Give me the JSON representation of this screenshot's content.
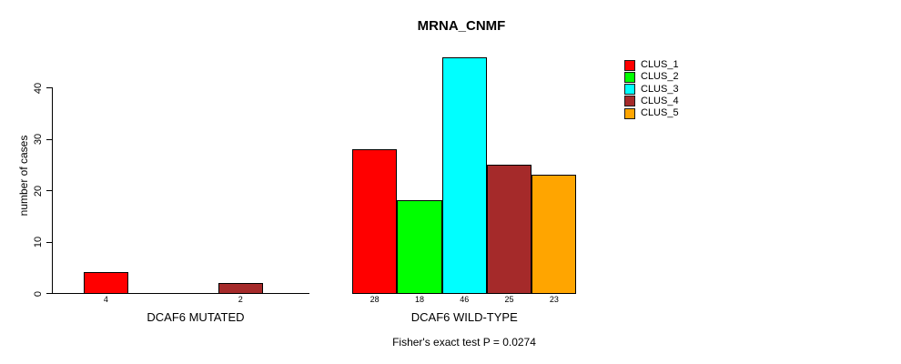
{
  "chart_data": {
    "type": "bar",
    "title": "MRNA_CNMF",
    "xlabel": "",
    "ylabel": "number of cases",
    "series": [
      "CLUS_1",
      "CLUS_2",
      "CLUS_3",
      "CLUS_4",
      "CLUS_5"
    ],
    "colors": [
      "#ff0000",
      "#00ff00",
      "#00ffff",
      "#a52a2a",
      "#ffa500"
    ],
    "groups": [
      {
        "label": "DCAF6 MUTATED",
        "values": [
          4,
          0,
          0,
          2,
          0
        ]
      },
      {
        "label": "DCAF6 WILD-TYPE",
        "values": [
          28,
          18,
          46,
          25,
          23
        ]
      }
    ],
    "bar_value_labels": [
      "4",
      "2",
      "28",
      "18",
      "46",
      "25",
      "23"
    ],
    "yticks": [
      0,
      10,
      20,
      30,
      40
    ],
    "ylim": [
      0,
      46
    ],
    "grid": false,
    "legend_position": "right",
    "annotation": "Fisher's exact test P = 0.0274"
  }
}
